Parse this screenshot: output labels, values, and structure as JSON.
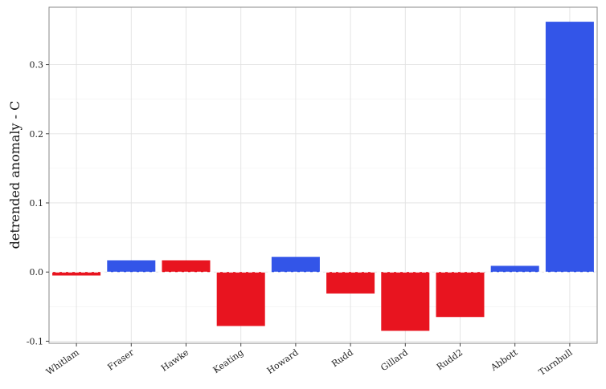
{
  "chart_data": {
    "type": "bar",
    "title": "",
    "xlabel": "",
    "ylabel": "detrended anomaly - C",
    "categories": [
      "Whitlam",
      "Fraser",
      "Hawke",
      "Keating",
      "Howard",
      "Rudd",
      "Gillard",
      "Rudd2",
      "Abbott",
      "Turnbull"
    ],
    "values": [
      -0.005,
      0.017,
      0.017,
      -0.078,
      0.022,
      -0.031,
      -0.085,
      -0.065,
      0.009,
      0.362
    ],
    "bar_colors": [
      "#e8141f",
      "#3355e8",
      "#e8141f",
      "#e8141f",
      "#3355e8",
      "#e8141f",
      "#e8141f",
      "#e8141f",
      "#3355e8",
      "#3355e8"
    ],
    "y_ticks": [
      -0.1,
      0.0,
      0.1,
      0.2,
      0.3
    ],
    "y_tick_labels": [
      "-0.1",
      "0.0",
      "0.1",
      "0.2",
      "0.3"
    ],
    "ylim": [
      -0.103,
      0.383
    ],
    "grid": true,
    "zero_line_style": "dashed",
    "colors": {
      "red": "#e8141f",
      "blue": "#3355e8",
      "panel_border": "#888888"
    }
  }
}
